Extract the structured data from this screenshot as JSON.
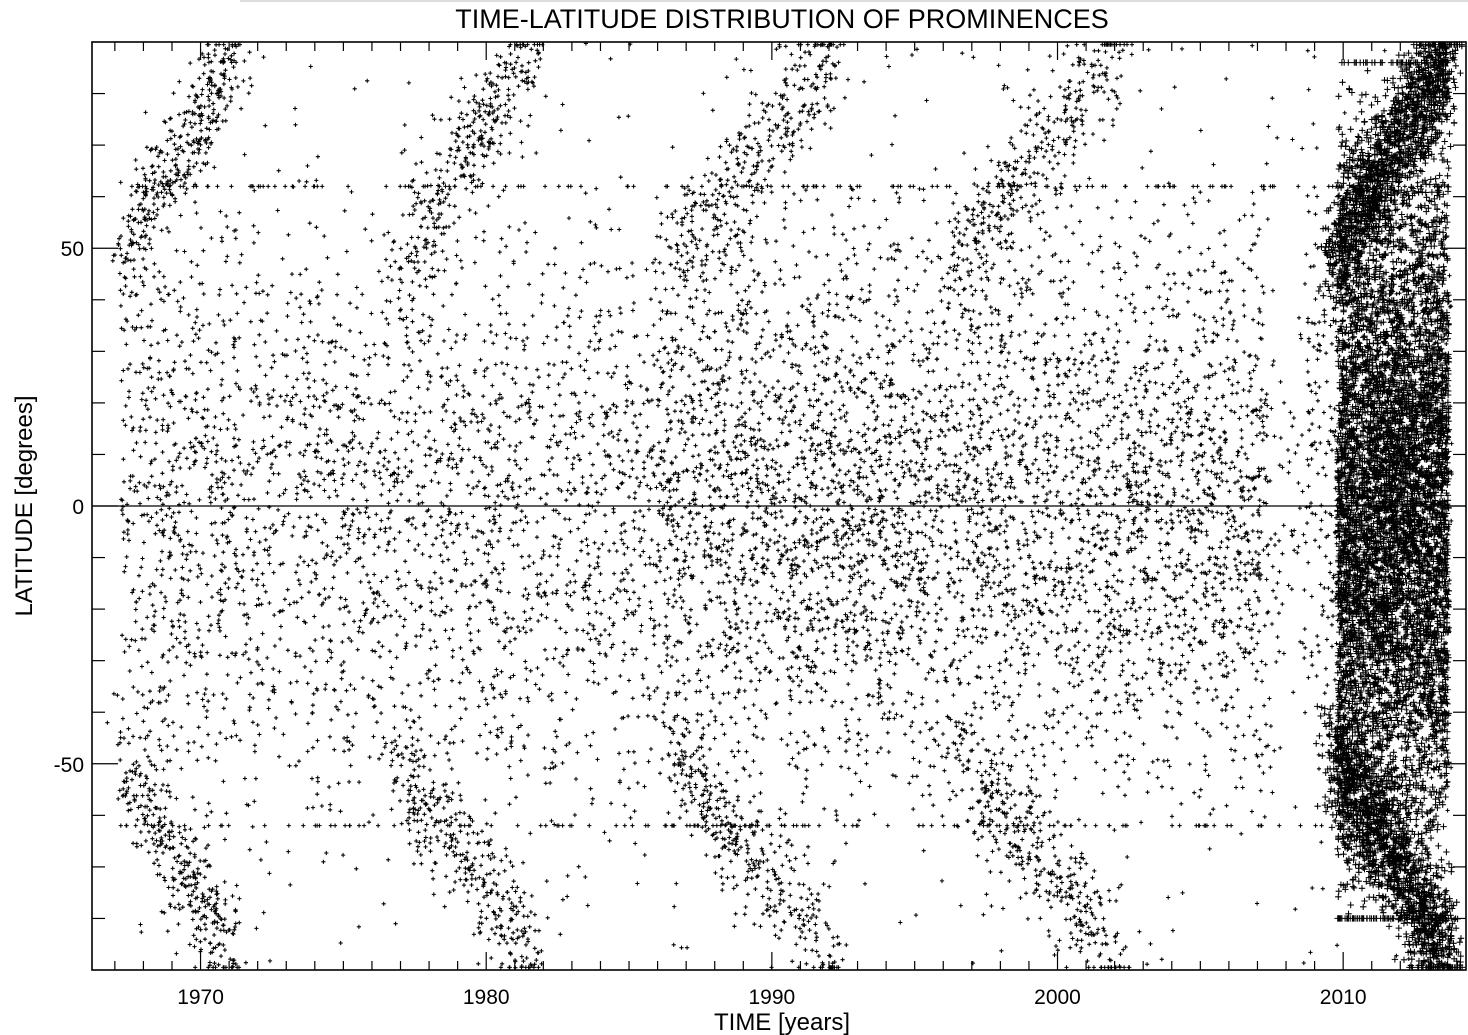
{
  "chart_data": {
    "type": "scatter",
    "title": "TIME-LATITUDE DISTRIBUTION OF PROMINENCES",
    "xlabel": "TIME [years]",
    "ylabel": "LATITUDE [degrees]",
    "xlim": [
      1966.2,
      2014.3
    ],
    "ylim": [
      -90,
      90
    ],
    "xticks": [
      1970,
      1980,
      1990,
      2000,
      2010
    ],
    "xtick_labels": [
      "1970",
      "1980",
      "1990",
      "2000",
      "2010"
    ],
    "yticks": [
      -50,
      0,
      50
    ],
    "ytick_labels": [
      "-50",
      "0",
      "50"
    ],
    "grid": false,
    "legend": "none",
    "zero_line": true,
    "marker": "plus",
    "marker_color": "#000000",
    "series": [
      {
        "cycles": [
          {
            "start": 1967.2,
            "end": 1971.2
          },
          {
            "start": 1976.8,
            "end": 1981.8
          },
          {
            "start": 1986.5,
            "end": 1992.3
          },
          {
            "start": 1996.3,
            "end": 2002.2
          },
          {
            "start": 2009.6,
            "end": 2013.8
          }
        ],
        "points_sample": [
          [
            1967.5,
            65
          ],
          [
            1968.2,
            70
          ],
          [
            1969.8,
            88
          ],
          [
            1970.5,
            40
          ],
          [
            1971.0,
            -88
          ],
          [
            1975.0,
            45
          ],
          [
            1978.0,
            55
          ],
          [
            1980.3,
            80
          ],
          [
            1981.0,
            -85
          ],
          [
            1984.0,
            30
          ],
          [
            1988.5,
            -20
          ],
          [
            1990.8,
            88
          ],
          [
            1992.0,
            -88
          ],
          [
            1994.0,
            30
          ],
          [
            1997.0,
            -40
          ],
          [
            2000.8,
            88
          ],
          [
            2001.8,
            -88
          ],
          [
            2004.0,
            20
          ],
          [
            2007.0,
            -30
          ],
          [
            2011.5,
            50
          ],
          [
            2012.5,
            -60
          ],
          [
            2013.3,
            85
          ],
          [
            2013.5,
            -75
          ]
        ]
      }
    ]
  }
}
